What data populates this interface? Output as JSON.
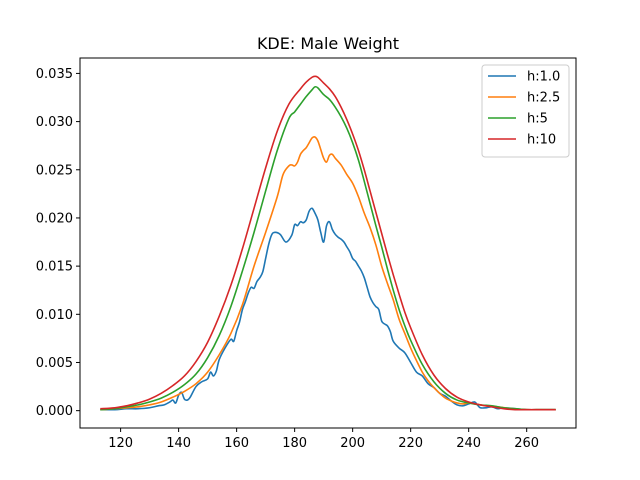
{
  "chart_data": {
    "type": "line",
    "title": "KDE: Male Weight",
    "xlabel": "",
    "ylabel": "",
    "xlim": [
      106,
      277
    ],
    "ylim": [
      -0.0018,
      0.0366
    ],
    "xticks": [
      "120",
      "140",
      "160",
      "180",
      "200",
      "220",
      "240",
      "260"
    ],
    "yticks": [
      "0.000",
      "0.005",
      "0.010",
      "0.015",
      "0.020",
      "0.025",
      "0.030",
      "0.035"
    ],
    "legend_position": "top-right",
    "grid": false,
    "series": [
      {
        "name": "h:1.0",
        "color": "#1f77b4",
        "x": [
          113,
          118,
          122,
          126,
          130,
          133,
          135,
          137,
          138,
          139,
          140,
          141,
          142,
          143,
          144,
          146,
          148,
          150,
          151,
          152,
          153,
          154,
          156,
          158,
          159,
          160,
          161,
          162,
          163,
          164,
          165,
          166,
          167,
          168,
          169,
          170,
          171,
          172,
          173,
          175,
          177,
          179,
          180,
          181,
          182,
          183,
          184,
          185,
          186,
          187,
          188,
          189,
          190,
          191,
          192,
          193,
          194,
          195,
          196,
          197,
          198,
          199,
          200,
          201,
          202,
          203,
          204,
          205,
          206,
          207,
          208,
          209,
          210,
          211,
          212,
          213,
          214,
          216,
          218,
          220,
          222,
          224,
          226,
          228,
          230,
          232,
          234,
          236,
          238,
          240,
          242,
          243,
          244,
          246,
          248,
          250,
          252,
          256,
          260,
          265,
          270
        ],
        "y": [
          0.0001,
          0.0001,
          0.0002,
          0.0002,
          0.0003,
          0.0005,
          0.0006,
          0.0009,
          0.0011,
          0.0008,
          0.0016,
          0.0019,
          0.0012,
          0.0011,
          0.0014,
          0.0025,
          0.003,
          0.0033,
          0.004,
          0.0036,
          0.0041,
          0.0053,
          0.0065,
          0.0074,
          0.0072,
          0.0083,
          0.0092,
          0.0105,
          0.0113,
          0.0122,
          0.0128,
          0.0127,
          0.0134,
          0.0138,
          0.0144,
          0.0158,
          0.0172,
          0.0182,
          0.0185,
          0.0183,
          0.0175,
          0.0182,
          0.0193,
          0.0192,
          0.0196,
          0.0195,
          0.0198,
          0.0207,
          0.021,
          0.0205,
          0.0198,
          0.0185,
          0.0175,
          0.0192,
          0.0196,
          0.0188,
          0.0183,
          0.018,
          0.0178,
          0.0175,
          0.017,
          0.0165,
          0.0158,
          0.0155,
          0.015,
          0.0145,
          0.0138,
          0.0128,
          0.0118,
          0.0112,
          0.0108,
          0.0105,
          0.0093,
          0.009,
          0.0088,
          0.0082,
          0.0072,
          0.0065,
          0.006,
          0.005,
          0.004,
          0.0036,
          0.0028,
          0.0024,
          0.0018,
          0.0015,
          0.001,
          0.0006,
          0.0005,
          0.0007,
          0.0009,
          0.0006,
          0.0003,
          0.0003,
          0.0004,
          0.0002,
          0.0003,
          0.0002,
          0.0001,
          0.0001,
          0.0001
        ]
      },
      {
        "name": "h:2.5",
        "color": "#ff7f0e",
        "x": [
          113,
          118,
          122,
          126,
          130,
          134,
          138,
          142,
          146,
          150,
          154,
          158,
          162,
          166,
          170,
          174,
          176,
          178,
          179,
          180,
          181,
          182,
          183,
          184,
          185,
          186,
          187,
          188,
          189,
          190,
          191,
          192,
          193,
          194,
          196,
          198,
          200,
          202,
          204,
          206,
          208,
          210,
          212,
          214,
          216,
          218,
          220,
          222,
          224,
          226,
          228,
          230,
          232,
          234,
          236,
          238,
          240,
          242,
          246,
          250,
          255,
          260,
          265,
          270
        ],
        "y": [
          0.0001,
          0.0002,
          0.0003,
          0.0004,
          0.0006,
          0.0009,
          0.0014,
          0.002,
          0.0028,
          0.004,
          0.0058,
          0.008,
          0.011,
          0.015,
          0.0185,
          0.0222,
          0.0245,
          0.0254,
          0.0255,
          0.0254,
          0.0258,
          0.0266,
          0.027,
          0.0273,
          0.0278,
          0.0283,
          0.0284,
          0.028,
          0.0271,
          0.0262,
          0.0258,
          0.0265,
          0.0266,
          0.0262,
          0.0255,
          0.0245,
          0.0236,
          0.0222,
          0.0205,
          0.019,
          0.0172,
          0.015,
          0.0132,
          0.0115,
          0.0095,
          0.008,
          0.0065,
          0.0052,
          0.004,
          0.0031,
          0.0024,
          0.0018,
          0.0013,
          0.001,
          0.0008,
          0.0007,
          0.0008,
          0.0007,
          0.0005,
          0.0004,
          0.0002,
          0.0001,
          0.0001,
          0.0001
        ]
      },
      {
        "name": "h:5",
        "color": "#2ca02c",
        "x": [
          113,
          118,
          122,
          126,
          130,
          134,
          138,
          142,
          146,
          150,
          154,
          158,
          162,
          166,
          170,
          174,
          178,
          180,
          182,
          184,
          186,
          187,
          188,
          190,
          192,
          194,
          196,
          198,
          200,
          202,
          204,
          206,
          208,
          210,
          212,
          214,
          216,
          218,
          220,
          224,
          228,
          232,
          236,
          240,
          244,
          248,
          252,
          256,
          260,
          265,
          270
        ],
        "y": [
          0.0001,
          0.0002,
          0.0004,
          0.0006,
          0.0009,
          0.0013,
          0.0019,
          0.0027,
          0.0038,
          0.0055,
          0.0078,
          0.0108,
          0.0145,
          0.0185,
          0.0228,
          0.027,
          0.0303,
          0.031,
          0.0318,
          0.0326,
          0.0333,
          0.0336,
          0.0335,
          0.0328,
          0.0323,
          0.0315,
          0.0305,
          0.0293,
          0.0278,
          0.026,
          0.0238,
          0.0215,
          0.0192,
          0.017,
          0.0147,
          0.0125,
          0.0105,
          0.0088,
          0.0073,
          0.0048,
          0.003,
          0.0018,
          0.0011,
          0.0008,
          0.0006,
          0.0005,
          0.0003,
          0.0002,
          0.0001,
          0.0001,
          0.0001
        ]
      },
      {
        "name": "h:10",
        "color": "#d62728",
        "x": [
          113,
          118,
          122,
          126,
          130,
          134,
          138,
          142,
          146,
          150,
          154,
          158,
          162,
          166,
          170,
          174,
          178,
          182,
          184,
          186,
          187,
          188,
          190,
          192,
          194,
          196,
          198,
          200,
          202,
          204,
          206,
          208,
          210,
          212,
          214,
          216,
          218,
          220,
          224,
          228,
          232,
          236,
          240,
          244,
          248,
          252,
          256,
          260,
          265,
          270
        ],
        "y": [
          0.0002,
          0.0003,
          0.0005,
          0.0008,
          0.0012,
          0.0018,
          0.0026,
          0.0036,
          0.0051,
          0.0071,
          0.0098,
          0.013,
          0.0168,
          0.021,
          0.0252,
          0.029,
          0.0318,
          0.0334,
          0.0341,
          0.0346,
          0.0347,
          0.0346,
          0.034,
          0.0334,
          0.0326,
          0.0315,
          0.0302,
          0.0287,
          0.027,
          0.025,
          0.0228,
          0.0206,
          0.0184,
          0.0162,
          0.0141,
          0.0121,
          0.0102,
          0.0086,
          0.0058,
          0.0037,
          0.0023,
          0.0014,
          0.0009,
          0.0006,
          0.0004,
          0.0002,
          0.0001,
          0.0001,
          0.0001,
          0.0001
        ]
      }
    ]
  }
}
